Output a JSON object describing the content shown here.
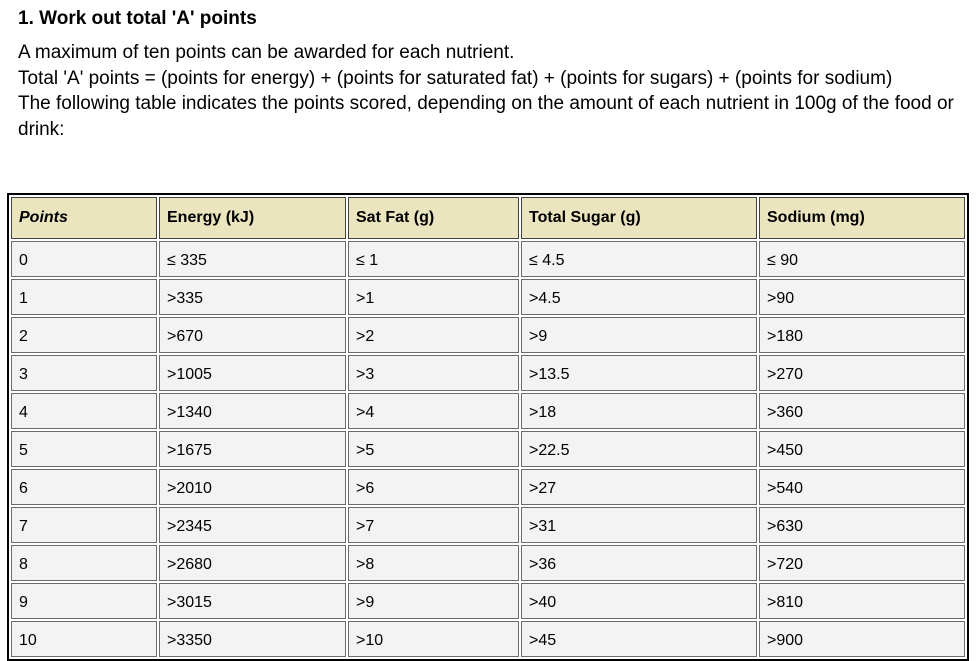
{
  "heading": "1. Work out total 'A' points",
  "intro": {
    "line1": "A maximum of ten points can be awarded for each nutrient.",
    "line2": "Total 'A' points = (points for energy) + (points for saturated fat) + (points for sugars) + (points for sodium)",
    "line3": "The following table indicates the points scored, depending on the amount of each nutrient in 100g of the food or drink:"
  },
  "table": {
    "headers": [
      "Points",
      "Energy (kJ)",
      "Sat Fat (g)",
      "Total Sugar (g)",
      "Sodium (mg)"
    ],
    "rows": [
      [
        "0",
        "≤ 335",
        "≤ 1",
        "≤ 4.5",
        "≤ 90"
      ],
      [
        "1",
        ">335",
        ">1",
        ">4.5",
        ">90"
      ],
      [
        "2",
        ">670",
        ">2",
        ">9",
        ">180"
      ],
      [
        "3",
        ">1005",
        ">3",
        ">13.5",
        ">270"
      ],
      [
        "4",
        ">1340",
        ">4",
        ">18",
        ">360"
      ],
      [
        "5",
        ">1675",
        ">5",
        ">22.5",
        ">450"
      ],
      [
        "6",
        ">2010",
        ">6",
        ">27",
        ">540"
      ],
      [
        "7",
        ">2345",
        ">7",
        ">31",
        ">630"
      ],
      [
        "8",
        ">2680",
        ">8",
        ">36",
        ">720"
      ],
      [
        "9",
        ">3015",
        ">9",
        ">40",
        ">810"
      ],
      [
        "10",
        ">3350",
        ">10",
        ">45",
        ">900"
      ]
    ]
  }
}
